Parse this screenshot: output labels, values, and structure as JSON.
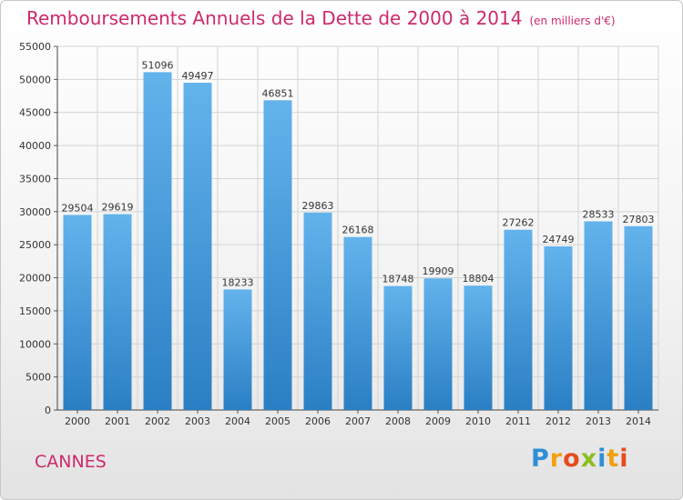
{
  "title": "Remboursements Annuels de la Dette de 2000 à 2014",
  "subtitle": "(en milliers d'€)",
  "city": "CANNES",
  "logo": {
    "text": "Proxiti",
    "letters": [
      "P",
      "r",
      "o",
      "x",
      "i",
      "t",
      "i"
    ],
    "colors": [
      "#2f8fd6",
      "#f0a010",
      "#e74c1e",
      "#8bbf22",
      "#2f8fd6",
      "#f0a010",
      "#e74c1e"
    ]
  },
  "colors": {
    "bar_top": "#63b3ec",
    "bar_bottom": "#2a7fc4",
    "title": "#cc2a6b",
    "grid": "#d4d4d4"
  },
  "chart_data": {
    "type": "bar",
    "title": "Remboursements Annuels de la Dette de 2000 à 2014",
    "subtitle": "(en milliers d'€)",
    "xlabel": "",
    "ylabel": "",
    "ylim": [
      0,
      55000
    ],
    "yticks": [
      0,
      5000,
      10000,
      15000,
      20000,
      25000,
      30000,
      35000,
      40000,
      45000,
      50000,
      55000
    ],
    "grid": true,
    "categories": [
      "2000",
      "2001",
      "2002",
      "2003",
      "2004",
      "2005",
      "2006",
      "2007",
      "2008",
      "2009",
      "2010",
      "2011",
      "2012",
      "2013",
      "2014"
    ],
    "values": [
      29504,
      29619,
      51096,
      49497,
      18233,
      46851,
      29863,
      26168,
      18748,
      19909,
      18804,
      27262,
      24749,
      28533,
      27803
    ]
  }
}
